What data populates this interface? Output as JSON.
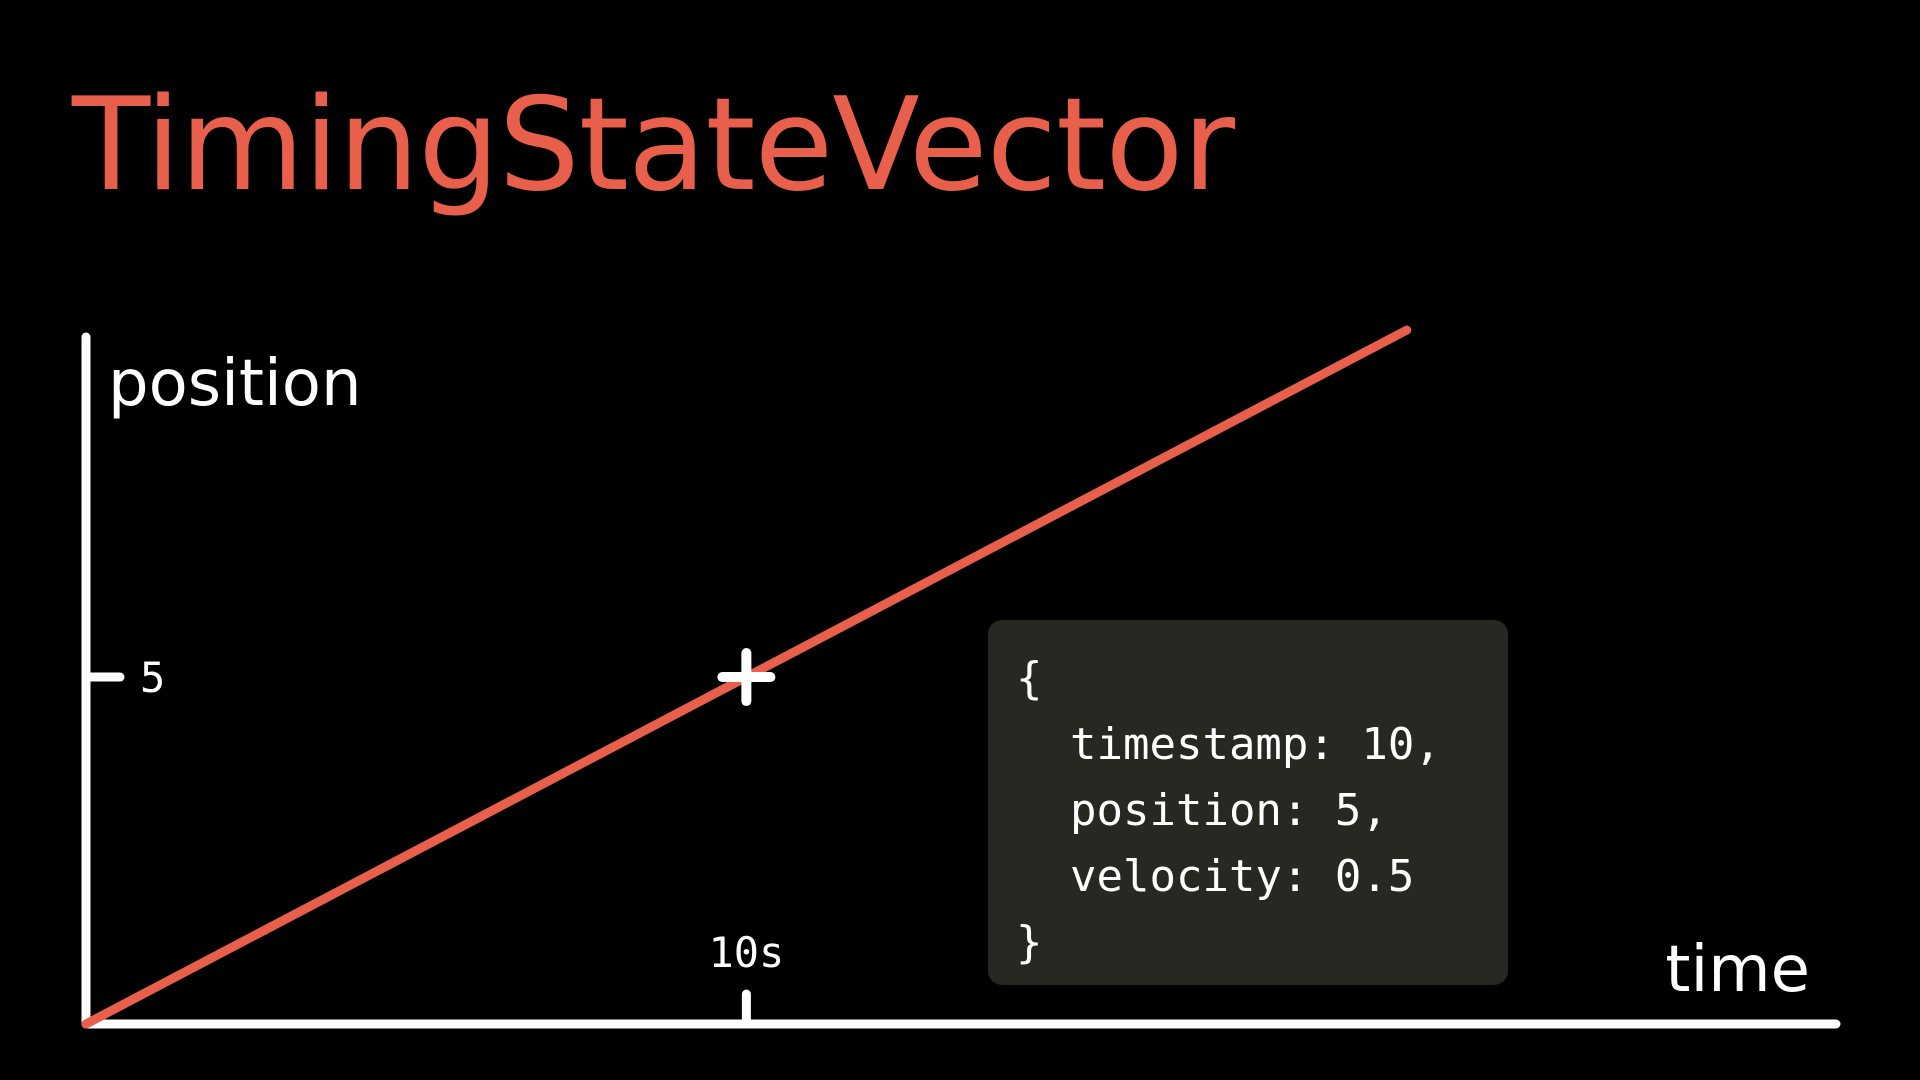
{
  "title": "TimingStateVector",
  "colors": {
    "background": "#000000",
    "accent": "#e8604c",
    "axis": "#ffffff",
    "panel": "#282823",
    "text": "#ffffff"
  },
  "code_block": {
    "open": "{",
    "lines": [
      "timestamp: 10,",
      "position: 5,",
      "velocity: 0.5"
    ],
    "close": "}"
  },
  "chart_data": {
    "type": "line",
    "xlabel": "time",
    "ylabel": "position",
    "xlim": [
      0,
      26.5
    ],
    "ylim": [
      0,
      9.9
    ],
    "x_ticks": [
      {
        "value": 10,
        "label": "10s"
      }
    ],
    "y_ticks": [
      {
        "value": 5,
        "label": "5"
      }
    ],
    "series": [
      {
        "x": [
          0,
          10,
          20
        ],
        "y": [
          0,
          5,
          10
        ],
        "color": "#e8604c"
      }
    ],
    "marker": {
      "x": 10,
      "y": 5,
      "symbol": "plus"
    },
    "grid": false,
    "legend": "none"
  }
}
